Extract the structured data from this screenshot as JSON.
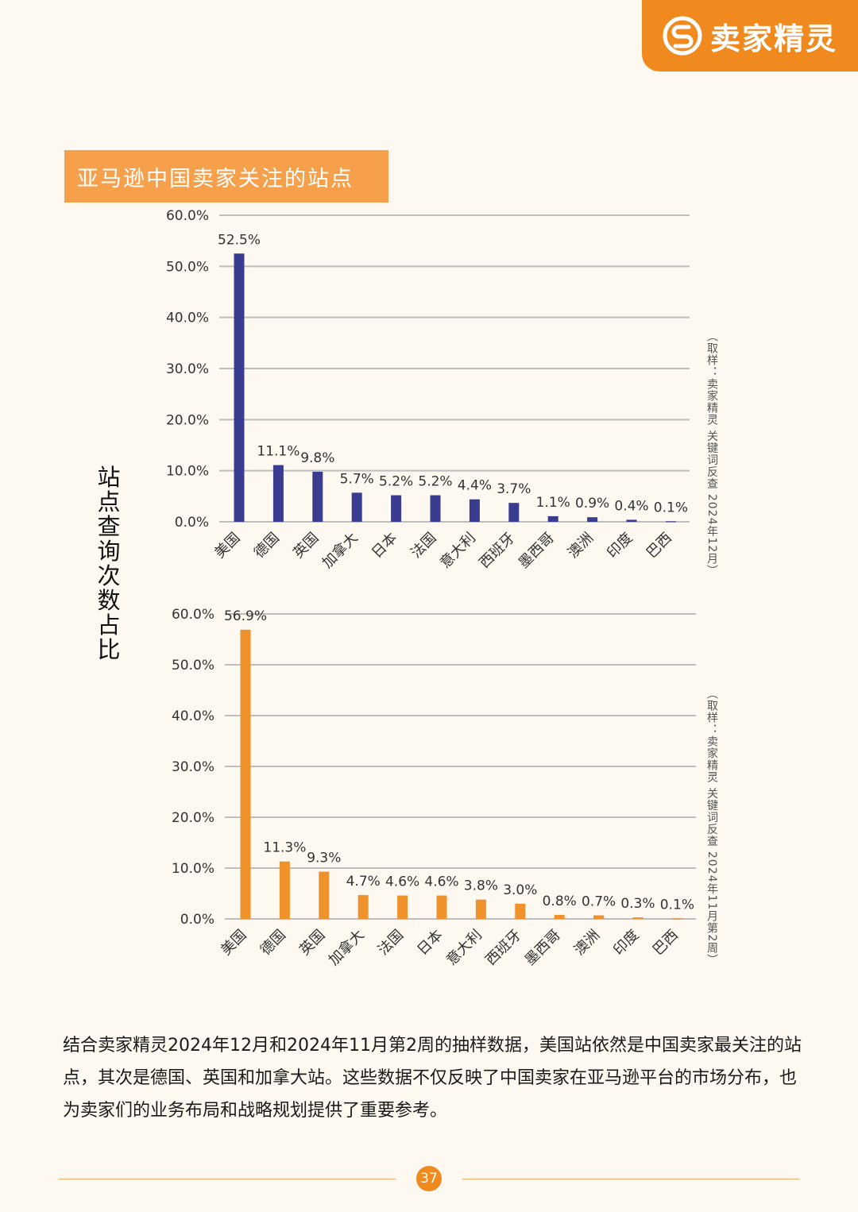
{
  "brand": {
    "name": "卖家精灵",
    "accent": "#f08a1e"
  },
  "section_title": "亚马逊中国卖家关注的站点",
  "y_axis_title": "站点查询次数占比",
  "chart_data": [
    {
      "type": "bar",
      "categories": [
        "美国",
        "德国",
        "英国",
        "加拿大",
        "日本",
        "法国",
        "意大利",
        "西班牙",
        "墨西哥",
        "澳洲",
        "印度",
        "巴西"
      ],
      "values": [
        52.5,
        11.1,
        9.8,
        5.7,
        5.2,
        5.2,
        4.4,
        3.7,
        1.1,
        0.9,
        0.4,
        0.1
      ],
      "value_labels": [
        "52.5%",
        "11.1%",
        "9.8%",
        "5.7%",
        "5.2%",
        "5.2%",
        "4.4%",
        "3.7%",
        "1.1%",
        "0.9%",
        "0.4%",
        "0.1%"
      ],
      "yticks": [
        "0.0%",
        "10.0%",
        "20.0%",
        "30.0%",
        "40.0%",
        "50.0%",
        "60.0%"
      ],
      "ylim": [
        0,
        60
      ],
      "color": "#3a3d8f",
      "grid": true,
      "source": "（取样：卖家精灵 关键词反查 2024年12月）"
    },
    {
      "type": "bar",
      "categories": [
        "美国",
        "德国",
        "英国",
        "加拿大",
        "法国",
        "日本",
        "意大利",
        "西班牙",
        "墨西哥",
        "澳洲",
        "印度",
        "巴西"
      ],
      "values": [
        56.9,
        11.3,
        9.3,
        4.7,
        4.6,
        4.6,
        3.8,
        3.0,
        0.8,
        0.7,
        0.3,
        0.1
      ],
      "value_labels": [
        "56.9%",
        "11.3%",
        "9.3%",
        "4.7%",
        "4.6%",
        "4.6%",
        "3.8%",
        "3.0%",
        "0.8%",
        "0.7%",
        "0.3%",
        "0.1%"
      ],
      "yticks": [
        "0.0%",
        "10.0%",
        "20.0%",
        "30.0%",
        "40.0%",
        "50.0%",
        "60.0%"
      ],
      "ylim": [
        0,
        60
      ],
      "color": "#f0922b",
      "grid": true,
      "source": "（取样：卖家精灵 关键词反查 2024年11月第2周）"
    }
  ],
  "body_text": "结合卖家精灵2024年12月和2024年11月第2周的抽样数据，美国站依然是中国卖家最关注的站点，其次是德国、英国和加拿大站。这些数据不仅反映了中国卖家在亚马逊平台的市场分布，也为卖家们的业务布局和战略规划提供了重要参考。",
  "page_number": "37"
}
